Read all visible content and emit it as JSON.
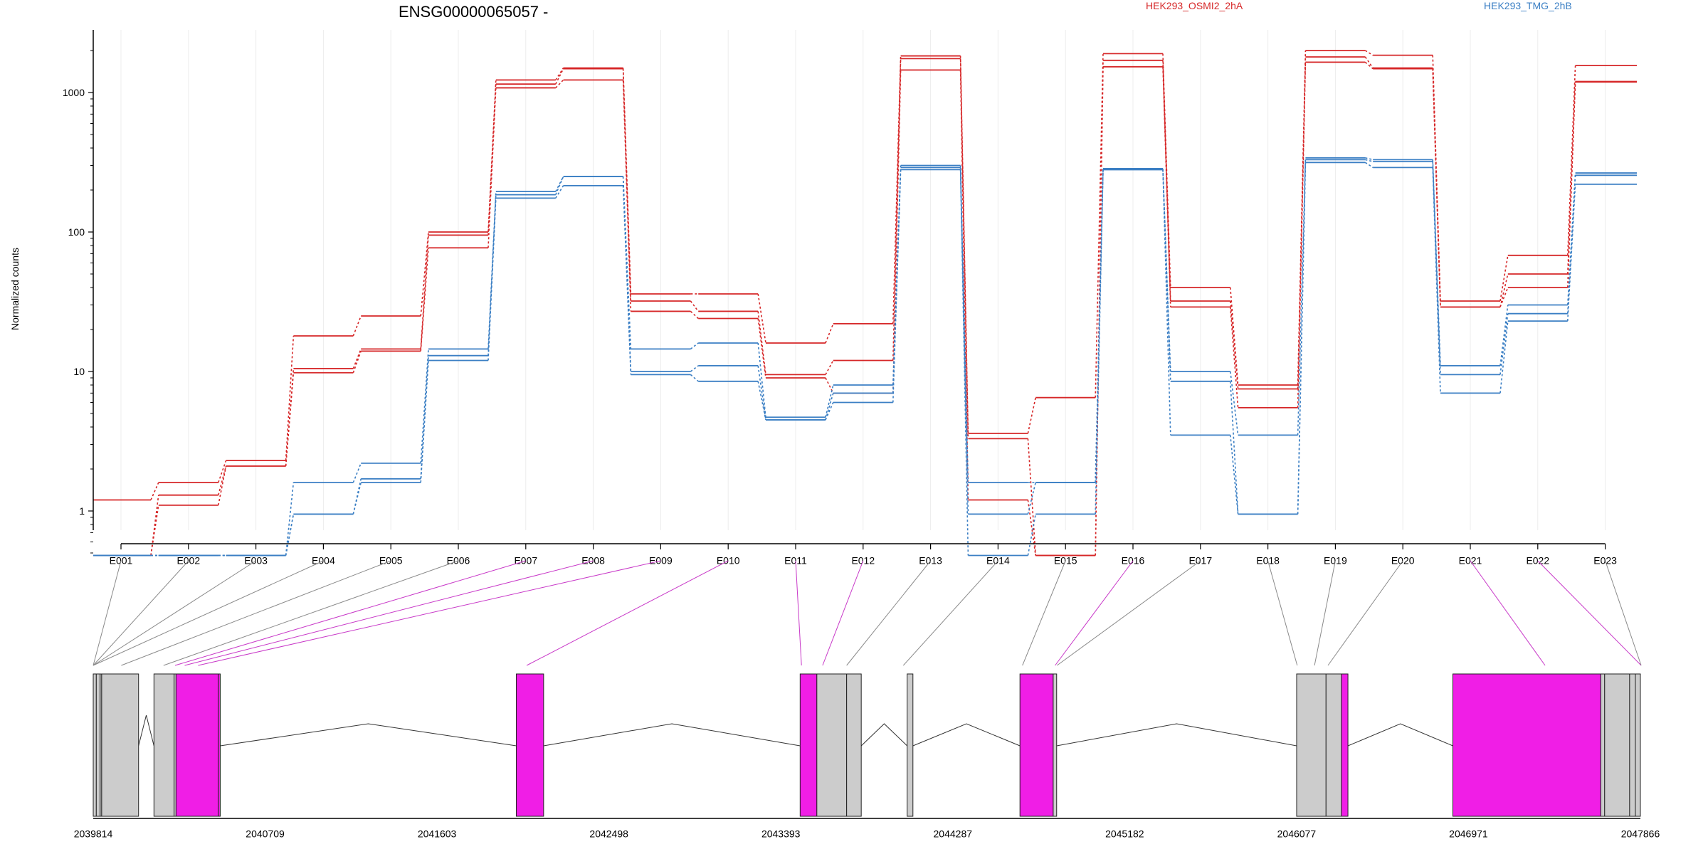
{
  "chart_data": {
    "type": "line",
    "title": "ENSG00000065057 -",
    "ylabel": "Normalized counts",
    "yscale": "log",
    "ylim": [
      0.45,
      2800
    ],
    "yticks": [
      1,
      10,
      100,
      1000
    ],
    "ytick_labels": [
      "1",
      "10",
      "100",
      "1000"
    ],
    "grid": "vertical",
    "legend_placement": "top-right",
    "categories": [
      "E001",
      "E002",
      "E003",
      "E004",
      "E005",
      "E006",
      "E007",
      "E008",
      "E009",
      "E010",
      "E011",
      "E012",
      "E013",
      "E014",
      "E015",
      "E016",
      "E017",
      "E018",
      "E019",
      "E020",
      "E021",
      "E022",
      "E023"
    ],
    "series": [
      {
        "name": "HEK293_OSMI2_2hA",
        "group": "HEK293_OSMI2_2hA",
        "color": "#d62728",
        "values": [
          1.2,
          1.6,
          2.3,
          18,
          25,
          100,
          1230,
          1500,
          36,
          36,
          16,
          22,
          1830,
          3.6,
          6.5,
          1900,
          40,
          8,
          2000,
          1850,
          32,
          68,
          1560
        ]
      },
      {
        "name": "",
        "group": "HEK293_OSMI2_2hA",
        "color": "#d62728",
        "values": [
          0.48,
          1.1,
          2.1,
          10.5,
          14.5,
          95,
          1150,
          1480,
          32,
          27,
          9.5,
          12,
          1750,
          3.3,
          0.48,
          1700,
          32,
          7.5,
          1800,
          1500,
          29,
          50,
          1200
        ]
      },
      {
        "name": "",
        "group": "HEK293_OSMI2_2hA",
        "color": "#d62728",
        "values": [
          0.48,
          1.3,
          2.1,
          9.8,
          14,
          77,
          1080,
          1230,
          27,
          24,
          9,
          7,
          1450,
          1.2,
          0.48,
          1530,
          29,
          5.5,
          1650,
          1480,
          29,
          40,
          1190
        ]
      },
      {
        "name": "HEK293_TMG_2hB",
        "group": "HEK293_TMG_2hB",
        "color": "#3b7fc4",
        "values": [
          0.48,
          0.48,
          0.48,
          1.6,
          2.2,
          14.5,
          195,
          250,
          14.5,
          16,
          4.7,
          8,
          300,
          1.6,
          1.6,
          280,
          10,
          3.5,
          340,
          330,
          11,
          30,
          265
        ]
      },
      {
        "name": "",
        "group": "HEK293_TMG_2hB",
        "color": "#3b7fc4",
        "values": [
          0.48,
          0.48,
          0.48,
          0.95,
          1.7,
          13,
          185,
          250,
          10,
          11,
          4.5,
          7,
          290,
          0.95,
          1.6,
          285,
          8.5,
          0.95,
          330,
          320,
          9.5,
          26,
          255
        ]
      },
      {
        "name": "",
        "group": "HEK293_TMG_2hB",
        "color": "#3b7fc4",
        "values": [
          0.48,
          0.48,
          0.48,
          0.95,
          1.6,
          12,
          175,
          215,
          9.5,
          8.5,
          4.5,
          6,
          280,
          0.48,
          0.95,
          280,
          3.5,
          0.95,
          315,
          290,
          7,
          23,
          220
        ]
      }
    ],
    "legend": [
      {
        "label": "HEK293_OSMI2_2hA",
        "color": "#d62728"
      },
      {
        "label": "HEK293_TMG_2hB",
        "color": "#3b7fc4"
      }
    ],
    "gene_model": {
      "coord_ticks": [
        "2039814",
        "2040709",
        "2041603",
        "2042498",
        "2043393",
        "2044287",
        "2045182",
        "2046077",
        "2046971",
        "2047866"
      ],
      "coord_range": [
        2039814,
        2047866
      ],
      "exon_colors": {
        "gray": "#cccccc",
        "magenta": "#f01ee6"
      },
      "exons": [
        {
          "id": "E001",
          "start": 2039814,
          "end": 2039830,
          "color": "gray"
        },
        {
          "id": "E002",
          "start": 2039830,
          "end": 2039850,
          "color": "gray"
        },
        {
          "id": "E003",
          "start": 2039850,
          "end": 2039858,
          "color": "gray"
        },
        {
          "id": "E004",
          "start": 2039858,
          "end": 2040050,
          "color": "gray"
        },
        {
          "id": "E005",
          "start": 2040130,
          "end": 2040235,
          "color": "gray"
        },
        {
          "id": "E006",
          "start": 2040235,
          "end": 2040245,
          "color": "gray"
        },
        {
          "id": "E007",
          "start": 2040245,
          "end": 2040465,
          "color": "magenta"
        },
        {
          "id": "E008",
          "start": 2040465,
          "end": 2040475,
          "color": "magenta"
        },
        {
          "id": "E009",
          "start": 2042016,
          "end": 2042158,
          "color": "magenta"
        },
        {
          "id": "E010",
          "start": 2043493,
          "end": 2043580,
          "color": "magenta"
        },
        {
          "id": "E011",
          "start": 2043580,
          "end": 2043735,
          "color": "gray"
        },
        {
          "id": "E012",
          "start": 2043735,
          "end": 2043811,
          "color": "gray"
        },
        {
          "id": "E013",
          "start": 2044050,
          "end": 2044080,
          "color": "gray"
        },
        {
          "id": "E014",
          "start": 2044637,
          "end": 2044810,
          "color": "magenta"
        },
        {
          "id": "E015",
          "start": 2044810,
          "end": 2044828,
          "color": "gray"
        },
        {
          "id": "E016",
          "start": 2046077,
          "end": 2046230,
          "color": "gray"
        },
        {
          "id": "E017",
          "start": 2046230,
          "end": 2046310,
          "color": "gray"
        },
        {
          "id": "E018",
          "start": 2046310,
          "end": 2046344,
          "color": "magenta"
        },
        {
          "id": "E019",
          "start": 2046890,
          "end": 2047660,
          "color": "magenta"
        },
        {
          "id": "E020",
          "start": 2047660,
          "end": 2047680,
          "color": "gray"
        },
        {
          "id": "E021",
          "start": 2047680,
          "end": 2047810,
          "color": "gray"
        },
        {
          "id": "E022",
          "start": 2047810,
          "end": 2047840,
          "color": "gray"
        },
        {
          "id": "E023",
          "start": 2047840,
          "end": 2047866,
          "color": "gray"
        }
      ],
      "connector_anchor_positions": [
        2039814,
        2039814,
        2039814,
        2039814,
        2039960,
        2040180,
        2040240,
        2040290,
        2040360,
        2042070,
        2043500,
        2043610,
        2043735,
        2044030,
        2044650,
        2044820,
        2044830,
        2046080,
        2046170,
        2046240,
        2047370,
        2047870,
        2047870
      ],
      "highlighted_exons": [
        "E007",
        "E008",
        "E009",
        "E010",
        "E011",
        "E012",
        "E016",
        "E021",
        "E022"
      ]
    }
  }
}
